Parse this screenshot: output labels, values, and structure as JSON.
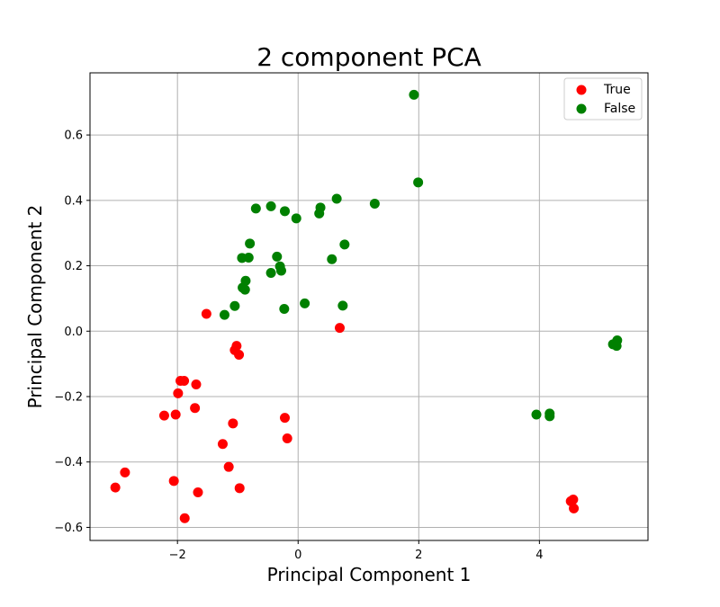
{
  "chart_data": {
    "type": "scatter",
    "title": "2 component PCA",
    "xlabel": "Principal Component 1",
    "ylabel": "Principal Component 2",
    "xlim": [
      -3.45,
      5.8
    ],
    "ylim": [
      -0.64,
      0.79
    ],
    "xticks": [
      -2,
      0,
      2,
      4
    ],
    "xtick_labels": [
      "−2",
      "0",
      "2",
      "4"
    ],
    "yticks": [
      -0.6,
      -0.4,
      -0.2,
      0.0,
      0.2,
      0.4,
      0.6
    ],
    "ytick_labels": [
      "−0.6",
      "−0.4",
      "−0.2",
      "0.0",
      "0.2",
      "0.4",
      "0.6"
    ],
    "grid": true,
    "legend_position": "top-right",
    "series": [
      {
        "name": "True",
        "color": "#ff0000",
        "points": [
          [
            -1.52,
            0.053
          ],
          [
            0.69,
            0.01
          ],
          [
            -1.02,
            -0.045
          ],
          [
            -1.05,
            -0.058
          ],
          [
            -0.98,
            -0.072
          ],
          [
            -1.95,
            -0.152
          ],
          [
            -1.89,
            -0.152
          ],
          [
            -1.69,
            -0.163
          ],
          [
            -1.99,
            -0.19
          ],
          [
            -1.71,
            -0.235
          ],
          [
            -2.22,
            -0.258
          ],
          [
            -2.03,
            -0.255
          ],
          [
            -0.22,
            -0.265
          ],
          [
            -1.08,
            -0.282
          ],
          [
            -0.18,
            -0.328
          ],
          [
            -1.25,
            -0.345
          ],
          [
            -1.15,
            -0.415
          ],
          [
            -2.87,
            -0.432
          ],
          [
            -2.06,
            -0.458
          ],
          [
            -3.03,
            -0.478
          ],
          [
            -0.97,
            -0.48
          ],
          [
            -1.66,
            -0.493
          ],
          [
            -1.88,
            -0.572
          ],
          [
            4.52,
            -0.52
          ],
          [
            4.56,
            -0.515
          ],
          [
            4.57,
            -0.542
          ]
        ]
      },
      {
        "name": "False",
        "color": "#008000",
        "points": [
          [
            1.92,
            0.723
          ],
          [
            1.99,
            0.455
          ],
          [
            0.64,
            0.405
          ],
          [
            1.27,
            0.39
          ],
          [
            0.37,
            0.378
          ],
          [
            -0.7,
            0.375
          ],
          [
            -0.45,
            0.382
          ],
          [
            -0.22,
            0.367
          ],
          [
            0.35,
            0.36
          ],
          [
            -0.03,
            0.345
          ],
          [
            -0.8,
            0.268
          ],
          [
            0.77,
            0.265
          ],
          [
            -0.93,
            0.224
          ],
          [
            -0.82,
            0.225
          ],
          [
            -0.35,
            0.228
          ],
          [
            0.56,
            0.22
          ],
          [
            -0.3,
            0.198
          ],
          [
            -0.28,
            0.185
          ],
          [
            -0.45,
            0.178
          ],
          [
            -0.87,
            0.154
          ],
          [
            -0.92,
            0.133
          ],
          [
            -0.88,
            0.127
          ],
          [
            -1.05,
            0.077
          ],
          [
            0.74,
            0.078
          ],
          [
            0.11,
            0.085
          ],
          [
            -0.23,
            0.068
          ],
          [
            -1.22,
            0.05
          ],
          [
            3.95,
            -0.255
          ],
          [
            4.17,
            -0.252
          ],
          [
            4.17,
            -0.26
          ],
          [
            5.22,
            -0.04
          ],
          [
            5.28,
            -0.045
          ],
          [
            5.29,
            -0.028
          ]
        ]
      }
    ]
  }
}
